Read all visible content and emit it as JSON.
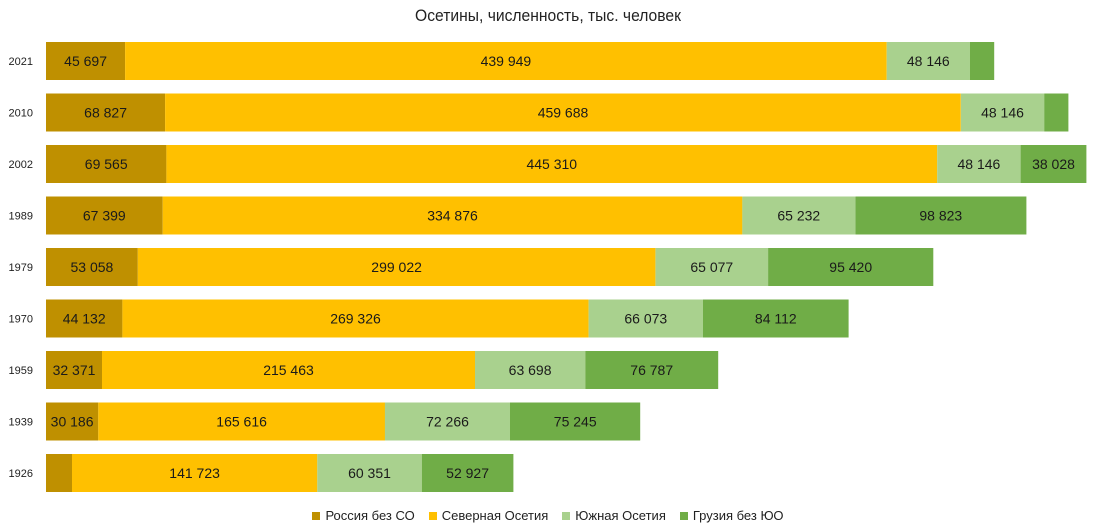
{
  "chart_data": {
    "type": "bar",
    "orientation": "horizontal",
    "stacked": true,
    "title": "Осетины, численность, тыс. человек",
    "categories": [
      "2021",
      "2010",
      "2002",
      "1989",
      "1979",
      "1970",
      "1959",
      "1939",
      "1926"
    ],
    "series": [
      {
        "name": "Россия без СО",
        "color": "#BF9000",
        "values": [
          45697,
          68827,
          69565,
          67399,
          53058,
          44132,
          32371,
          30186,
          15000
        ],
        "labels": [
          "45 697",
          "68 827",
          "69 565",
          "67 399",
          "53 058",
          "44 132",
          "32 371",
          "30 186",
          ""
        ]
      },
      {
        "name": "Северная Осетия",
        "color": "#FFC000",
        "values": [
          439949,
          459688,
          445310,
          334876,
          299022,
          269326,
          215463,
          165616,
          141723
        ],
        "labels": [
          "439 949",
          "459 688",
          "445 310",
          "334 876",
          "299 022",
          "269 326",
          "215 463",
          "165 616",
          "141 723"
        ]
      },
      {
        "name": "Южная Осетия",
        "color": "#A9D18E",
        "values": [
          48146,
          48146,
          48146,
          65232,
          65077,
          66073,
          63698,
          72266,
          60351
        ],
        "labels": [
          "48 146",
          "48 146",
          "48 146",
          "65 232",
          "65 077",
          "66 073",
          "63 698",
          "72 266",
          "60 351"
        ]
      },
      {
        "name": "Грузия без ЮО",
        "color": "#70AD47",
        "values": [
          14000,
          14000,
          38028,
          98823,
          95420,
          84112,
          76787,
          75245,
          52927
        ],
        "labels": [
          "",
          "",
          "38 028",
          "98 823",
          "95 420",
          "84 112",
          "76 787",
          "75 245",
          "52 927"
        ]
      }
    ],
    "legend_position": "bottom",
    "grid": false
  }
}
